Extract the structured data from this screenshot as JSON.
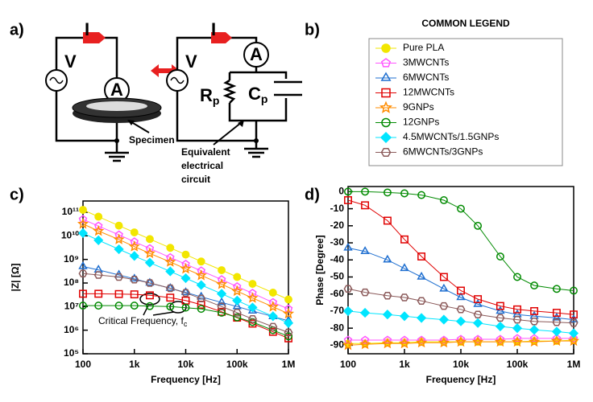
{
  "panels": {
    "a": "a)",
    "b": "b)",
    "c": "c)",
    "d": "d)"
  },
  "diagram": {
    "current_left": "I",
    "voltage_left": "V",
    "ammeter_left": "A",
    "current_right": "I",
    "voltage_right": "V",
    "ammeter_right": "A",
    "resistor": "R",
    "resistor_sub": "p",
    "capacitor": "C",
    "capacitor_sub": "p",
    "specimen": "Specimen",
    "equivalent": [
      "Equivalent",
      "electrical",
      "circuit"
    ]
  },
  "legend": {
    "title": "COMMON LEGEND"
  },
  "chart_data": [
    {
      "type": "scatter",
      "xscale": "log",
      "yscale": "log",
      "x_label": "Frequency [Hz]",
      "y_label": "|Z| [Ω]",
      "annotation": "Critical Frequency, f",
      "annotation_subscript": "c",
      "x": [
        100,
        200,
        500,
        1000,
        2000,
        5000,
        10000,
        20000,
        50000,
        100000,
        200000,
        500000,
        1000000
      ],
      "xlim": [
        100,
        1000000
      ],
      "xticks": [
        {
          "value": 100,
          "label": "100"
        },
        {
          "value": 1000,
          "label": "1k"
        },
        {
          "value": 10000,
          "label": "10k"
        },
        {
          "value": 100000,
          "label": "100k"
        },
        {
          "value": 1000000,
          "label": "1M"
        }
      ],
      "ylim": [
        100000,
        300000000000
      ],
      "yticks": [
        {
          "value": 100000,
          "label": "10⁵"
        },
        {
          "value": 1000000,
          "label": "10⁶"
        },
        {
          "value": 10000000,
          "label": "10⁷"
        },
        {
          "value": 100000000,
          "label": "10⁸"
        },
        {
          "value": 1000000000,
          "label": "10⁹"
        },
        {
          "value": 10000000000,
          "label": "10¹⁰"
        },
        {
          "value": 100000000000,
          "label": "10¹¹"
        }
      ],
      "series": [
        {
          "name": "Pure PLA",
          "color": "#f2e600",
          "marker": "circle-filled",
          "values": [
            126000000000,
            65000000000,
            27000000000,
            14000000000,
            7300000000,
            3100000000,
            1600000000,
            820000000,
            350000000,
            180000000,
            92000000,
            39000000,
            20000000
          ]
        },
        {
          "name": "3MWCNTs",
          "color": "#ff55ff",
          "marker": "pentagon",
          "values": [
            50000000000,
            26000000000,
            11000000000,
            5600000000,
            2900000000,
            1200000000,
            630000000,
            330000000,
            140000000,
            70000000,
            37000000,
            15000000,
            8000000
          ]
        },
        {
          "name": "6MWCNTs",
          "color": "#1f6fd0",
          "marker": "triangle",
          "values": [
            500000000,
            360000000,
            220000000,
            150000000,
            100000000,
            60000000,
            40000000,
            26000000,
            15000000,
            10000000,
            6500000,
            3800000,
            2500000
          ]
        },
        {
          "name": "12MWCNTs",
          "color": "#e00000",
          "marker": "square",
          "values": [
            35000000,
            35000000,
            34000000,
            33000000,
            30000000,
            24000000,
            18000000,
            12000000,
            6000000,
            3400000,
            1900000,
            850000,
            450000
          ]
        },
        {
          "name": "9GNPs",
          "color": "#ff8c00",
          "marker": "star",
          "values": [
            32000000000,
            16000000000,
            7000000000,
            3500000000,
            1800000000,
            780000000,
            400000000,
            210000000,
            88000000,
            45000000,
            23000000,
            9800000,
            5000000
          ]
        },
        {
          "name": "12GNPs",
          "color": "#008a00",
          "marker": "circle",
          "values": [
            11000000,
            11000000,
            11000000,
            11000000,
            10500000,
            10000000,
            9000000,
            8000000,
            5500000,
            3500000,
            2200000,
            1000000,
            550000
          ]
        },
        {
          "name": "4.5MWCNTs/1.5GNPs",
          "color": "#00e5ff",
          "marker": "diamond-filled",
          "values": [
            13000000000,
            6500000000,
            2700000000,
            1400000000,
            730000000,
            310000000,
            160000000,
            82000000,
            35000000,
            18000000,
            9200000,
            3900000,
            2000000
          ]
        },
        {
          "name": "6MWCNTs/3GNPs",
          "color": "#8b5a5a",
          "marker": "hexagon",
          "values": [
            250000000,
            220000000,
            180000000,
            140000000,
            100000000,
            60000000,
            38000000,
            22000000,
            10000000,
            5500000,
            3000000,
            1400000,
            800000
          ]
        }
      ]
    },
    {
      "type": "scatter",
      "xscale": "log",
      "x_label": "Frequency [Hz]",
      "y_label": "Phase [Degree]",
      "x": [
        100,
        200,
        500,
        1000,
        2000,
        5000,
        10000,
        20000,
        50000,
        100000,
        200000,
        500000,
        1000000
      ],
      "xlim": [
        100,
        1000000
      ],
      "xticks": [
        {
          "value": 100,
          "label": "100"
        },
        {
          "value": 1000,
          "label": "1k"
        },
        {
          "value": 10000,
          "label": "10k"
        },
        {
          "value": 100000,
          "label": "100k"
        },
        {
          "value": 1000000,
          "label": "1M"
        }
      ],
      "ylim": [
        -95,
        3
      ],
      "yticks": [
        0,
        -10,
        -20,
        -30,
        -40,
        -50,
        -60,
        -70,
        -80,
        -90
      ],
      "series": [
        {
          "color": "#f2e600",
          "marker": "circle-filled",
          "values": [
            -89,
            -89,
            -88.5,
            -88.5,
            -88,
            -88,
            -88,
            -88,
            -88,
            -88,
            -87.5,
            -87.5,
            -87
          ]
        },
        {
          "color": "#ff55ff",
          "marker": "pentagon",
          "values": [
            -87,
            -87,
            -87,
            -87,
            -87,
            -87,
            -86.5,
            -86.5,
            -86.5,
            -86,
            -86,
            -86,
            -86
          ]
        },
        {
          "color": "#1f6fd0",
          "marker": "triangle",
          "values": [
            -33,
            -35,
            -40,
            -45,
            -50,
            -57,
            -62,
            -66,
            -70,
            -72,
            -73,
            -74,
            -75
          ]
        },
        {
          "color": "#e00000",
          "marker": "square",
          "values": [
            -5,
            -8,
            -17,
            -28,
            -38,
            -50,
            -58,
            -63,
            -67,
            -69,
            -70,
            -71,
            -72
          ]
        },
        {
          "color": "#ff8c00",
          "marker": "star",
          "values": [
            -90,
            -89.5,
            -89,
            -89,
            -88.5,
            -88.5,
            -88,
            -88,
            -88,
            -88,
            -88,
            -87.5,
            -87.5
          ]
        },
        {
          "color": "#008a00",
          "marker": "circle",
          "values": [
            0,
            0,
            -0.5,
            -1,
            -2,
            -5,
            -10,
            -20,
            -38,
            -50,
            -55,
            -57,
            -58
          ]
        },
        {
          "color": "#00e5ff",
          "marker": "diamond-filled",
          "values": [
            -70,
            -71,
            -72,
            -73,
            -74,
            -75,
            -76,
            -77,
            -79,
            -80,
            -81,
            -82,
            -83
          ]
        },
        {
          "color": "#8b5a5a",
          "marker": "hexagon",
          "values": [
            -57,
            -59,
            -61,
            -62,
            -64,
            -67,
            -69,
            -72,
            -74,
            -75,
            -76,
            -76.5,
            -77
          ]
        }
      ]
    }
  ]
}
